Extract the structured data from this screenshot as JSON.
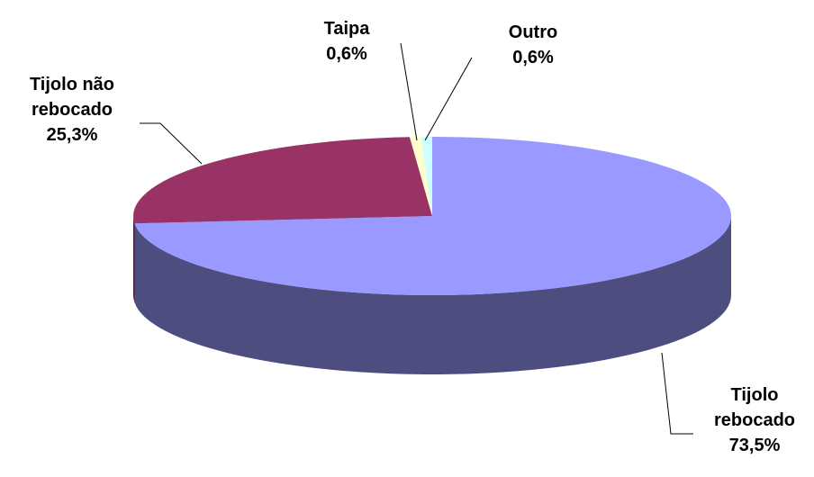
{
  "chart_data": {
    "type": "pie3d",
    "categories": [
      "Tijolo rebocado",
      "Tijolo não rebocado",
      "Taipa",
      "Outro"
    ],
    "values": [
      73.5,
      25.3,
      0.6,
      0.6
    ],
    "value_labels": [
      "73,5%",
      "25,3%",
      "0,6%",
      "0,6%"
    ],
    "colors": [
      "#9999ff",
      "#993366",
      "#ffffcc",
      "#ccffff"
    ],
    "legend": false
  }
}
